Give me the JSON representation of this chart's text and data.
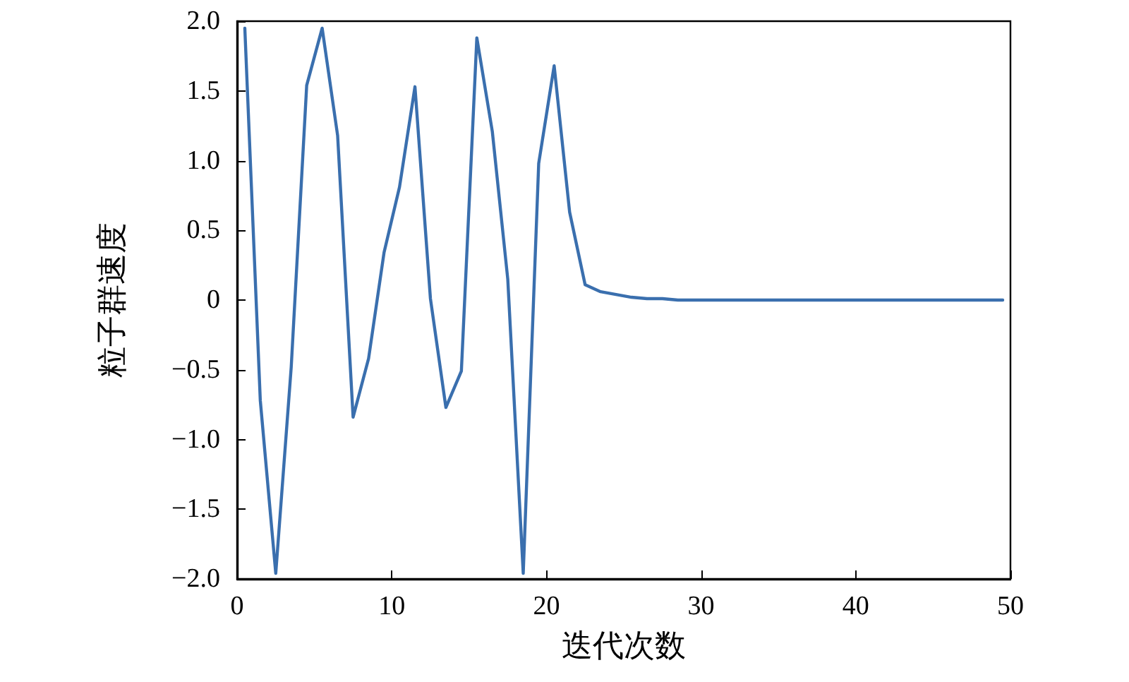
{
  "chart_data": {
    "type": "line",
    "xlabel": "迭代次数",
    "ylabel": "粒子群速度",
    "x": [
      0.5,
      1.5,
      2.5,
      3.5,
      4.5,
      5.5,
      6.5,
      7.5,
      8.5,
      9.5,
      10.5,
      11.5,
      12.5,
      13.5,
      14.5,
      15.5,
      16.5,
      17.5,
      18.5,
      19.5,
      20.5,
      21.5,
      22.5,
      23.5,
      24.5,
      25.5,
      26.5,
      27.5,
      28.5,
      29.5,
      30.5,
      31.5,
      32.5,
      33.5,
      34.5,
      35.5,
      36.5,
      37.5,
      38.5,
      39.5,
      40.5,
      41.5,
      42.5,
      43.5,
      44.5,
      45.5,
      46.5,
      47.5,
      48.5,
      49.5
    ],
    "series": [
      {
        "color": "#3a6fae",
        "values": [
          1.95,
          -0.72,
          -1.96,
          -0.48,
          1.54,
          1.95,
          1.18,
          -0.84,
          -0.42,
          0.34,
          0.81,
          1.53,
          0.01,
          -0.77,
          -0.51,
          1.88,
          1.21,
          0.15,
          -1.96,
          0.98,
          1.68,
          0.63,
          0.11,
          0.06,
          0.04,
          0.02,
          0.01,
          0.01,
          0,
          0,
          0,
          0,
          0,
          0,
          0,
          0,
          0,
          0,
          0,
          0,
          0,
          0,
          0,
          0,
          0,
          0,
          0,
          0,
          0,
          0
        ]
      }
    ],
    "xlim": [
      0,
      50
    ],
    "xticks": [
      0,
      10,
      20,
      30,
      40,
      50
    ],
    "ylim": [
      -2,
      2
    ],
    "yticks": [
      {
        "value": -2,
        "label": "−2.0"
      },
      {
        "value": -1.5,
        "label": "−1.5"
      },
      {
        "value": -1,
        "label": "−1.0"
      },
      {
        "value": -0.5,
        "label": "−0.5"
      },
      0,
      0.5,
      {
        "value": 1,
        "label": "1.0"
      },
      1.5,
      {
        "value": 2,
        "label": "2.0"
      }
    ],
    "grid": false,
    "marker": "none",
    "line_style": "solid"
  }
}
